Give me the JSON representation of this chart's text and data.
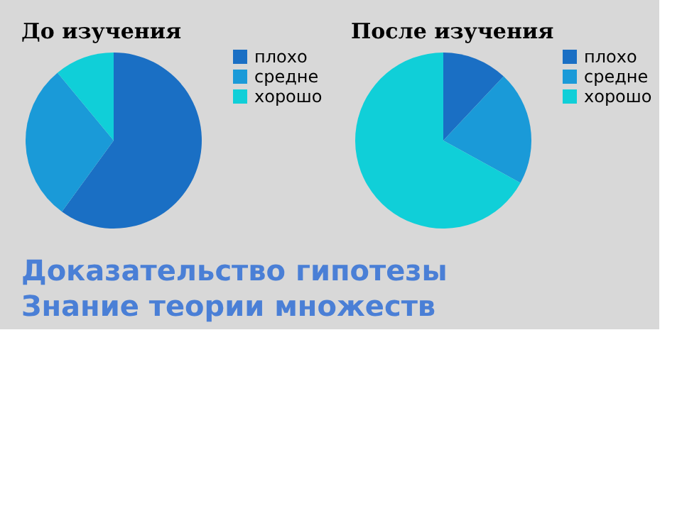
{
  "chart_data": [
    {
      "type": "pie",
      "title": "До изучения",
      "categories": [
        "плохо",
        "средне",
        "хорошо"
      ],
      "values": [
        60,
        29,
        11
      ],
      "colors": [
        "#1a6fc4",
        "#1a9ad8",
        "#10cfd8"
      ],
      "legend": "right",
      "annotations": [
        "Доказательство  гипотезы",
        "Знание теории множеств"
      ]
    },
    {
      "type": "pie",
      "title": "После изучения",
      "categories": [
        "плохо",
        "средне",
        "хорошо"
      ],
      "values": [
        12,
        21,
        67
      ],
      "colors": [
        "#1a6fc4",
        "#1a9ad8",
        "#10cfd8"
      ],
      "legend": "right"
    }
  ]
}
